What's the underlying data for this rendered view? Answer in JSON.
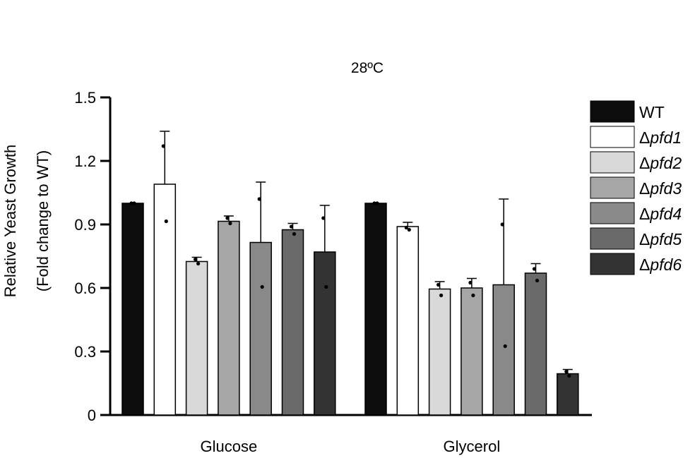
{
  "chart_data": {
    "type": "bar",
    "title": "28ºC",
    "ylabel_line1": "Relative Yeast Growth",
    "ylabel_line2": "(Fold change to WT)",
    "ylim": [
      0,
      1.5
    ],
    "yticks": [
      0,
      0.3,
      0.6,
      0.9,
      1.2,
      1.5
    ],
    "ytick_labels": [
      "0",
      "0.3",
      "0.6",
      "0.9",
      "1.2",
      "1.5"
    ],
    "categories": [
      "Glucose",
      "Glycerol"
    ],
    "legend_position": "right",
    "series": [
      {
        "name": "WT",
        "name_prefix": "",
        "name_italic": "WT",
        "color": "#0d0d0d",
        "values": [
          1.0,
          1.0
        ],
        "error_upper": [
          1.0,
          1.0
        ],
        "points": [
          [
            1.0,
            1.0
          ],
          [
            1.0,
            1.0
          ]
        ]
      },
      {
        "name": "Δpfd1",
        "name_prefix": "Δ",
        "name_italic": "pfd1",
        "color": "#ffffff",
        "values": [
          1.09,
          0.89
        ],
        "error_upper": [
          1.34,
          0.91
        ],
        "points": [
          [
            1.27,
            0.915
          ],
          [
            0.885,
            0.875
          ]
        ]
      },
      {
        "name": "Δpfd2",
        "name_prefix": "Δ",
        "name_italic": "pfd2",
        "color": "#d9d9d9",
        "values": [
          0.725,
          0.595
        ],
        "error_upper": [
          0.745,
          0.63
        ],
        "points": [
          [
            0.735,
            0.715
          ],
          [
            0.615,
            0.565
          ]
        ]
      },
      {
        "name": "Δpfd3",
        "name_prefix": "Δ",
        "name_italic": "pfd3",
        "color": "#a6a6a6",
        "values": [
          0.915,
          0.6
        ],
        "error_upper": [
          0.94,
          0.645
        ],
        "points": [
          [
            0.93,
            0.905
          ],
          [
            0.625,
            0.565
          ]
        ]
      },
      {
        "name": "Δpfd4",
        "name_prefix": "Δ",
        "name_italic": "pfd4",
        "color": "#898989",
        "values": [
          0.815,
          0.615
        ],
        "error_upper": [
          1.1,
          1.02
        ],
        "points": [
          [
            1.02,
            0.605
          ],
          [
            0.9,
            0.325
          ]
        ]
      },
      {
        "name": "Δpfd5",
        "name_prefix": "Δ",
        "name_italic": "pfd5",
        "color": "#6a6a6a",
        "values": [
          0.875,
          0.67
        ],
        "error_upper": [
          0.905,
          0.715
        ],
        "points": [
          [
            0.89,
            0.855
          ],
          [
            0.69,
            0.635
          ]
        ]
      },
      {
        "name": "Δpfd6",
        "name_prefix": "Δ",
        "name_italic": "pfd6",
        "color": "#333333",
        "values": [
          0.77,
          0.195
        ],
        "error_upper": [
          0.99,
          0.215
        ],
        "points": [
          [
            0.93,
            0.605
          ],
          [
            0.205,
            0.185
          ]
        ]
      }
    ]
  }
}
